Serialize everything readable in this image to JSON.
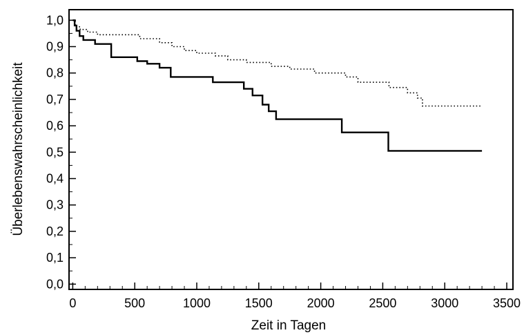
{
  "chart_data": {
    "type": "line",
    "title": "",
    "xlabel": "Zeit in Tagen",
    "ylabel": "Überlebenswahrscheinlichkeit",
    "xlim": [
      -30,
      3550
    ],
    "ylim": [
      -0.02,
      1.04
    ],
    "x_ticks": [
      0,
      500,
      1000,
      1500,
      2000,
      2500,
      3000,
      3500
    ],
    "x_tick_labels": [
      "0",
      "500",
      "1000",
      "1500",
      "2000",
      "2500",
      "3000",
      "3500"
    ],
    "y_ticks": [
      0.0,
      0.1,
      0.2,
      0.3,
      0.4,
      0.5,
      0.6,
      0.7,
      0.8,
      0.9,
      1.0
    ],
    "y_tick_labels": [
      "0,0",
      "0,1",
      "0,2",
      "0,3",
      "0,4",
      "0,5",
      "0,6",
      "0,7",
      "0,8",
      "0,9",
      "1,0"
    ],
    "grid": false,
    "legend": "none",
    "step": true,
    "series": [
      {
        "style": "solid",
        "color": "#000000",
        "points": [
          [
            0,
            1.0
          ],
          [
            15,
            0.98
          ],
          [
            30,
            0.96
          ],
          [
            55,
            0.94
          ],
          [
            85,
            0.925
          ],
          [
            180,
            0.91
          ],
          [
            310,
            0.86
          ],
          [
            520,
            0.845
          ],
          [
            600,
            0.835
          ],
          [
            700,
            0.82
          ],
          [
            790,
            0.785
          ],
          [
            1130,
            0.765
          ],
          [
            1380,
            0.74
          ],
          [
            1450,
            0.715
          ],
          [
            1530,
            0.68
          ],
          [
            1580,
            0.655
          ],
          [
            1640,
            0.625
          ],
          [
            2170,
            0.575
          ],
          [
            2545,
            0.505
          ],
          [
            3300,
            0.505
          ]
        ]
      },
      {
        "style": "dotted",
        "color": "#000000",
        "points": [
          [
            0,
            1.0
          ],
          [
            20,
            0.975
          ],
          [
            60,
            0.965
          ],
          [
            120,
            0.955
          ],
          [
            200,
            0.945
          ],
          [
            540,
            0.93
          ],
          [
            700,
            0.915
          ],
          [
            800,
            0.9
          ],
          [
            900,
            0.885
          ],
          [
            1000,
            0.875
          ],
          [
            1150,
            0.865
          ],
          [
            1250,
            0.85
          ],
          [
            1400,
            0.84
          ],
          [
            1600,
            0.825
          ],
          [
            1750,
            0.815
          ],
          [
            1950,
            0.8
          ],
          [
            2200,
            0.785
          ],
          [
            2300,
            0.765
          ],
          [
            2550,
            0.745
          ],
          [
            2700,
            0.725
          ],
          [
            2780,
            0.705
          ],
          [
            2820,
            0.675
          ],
          [
            3300,
            0.675
          ]
        ]
      }
    ]
  }
}
